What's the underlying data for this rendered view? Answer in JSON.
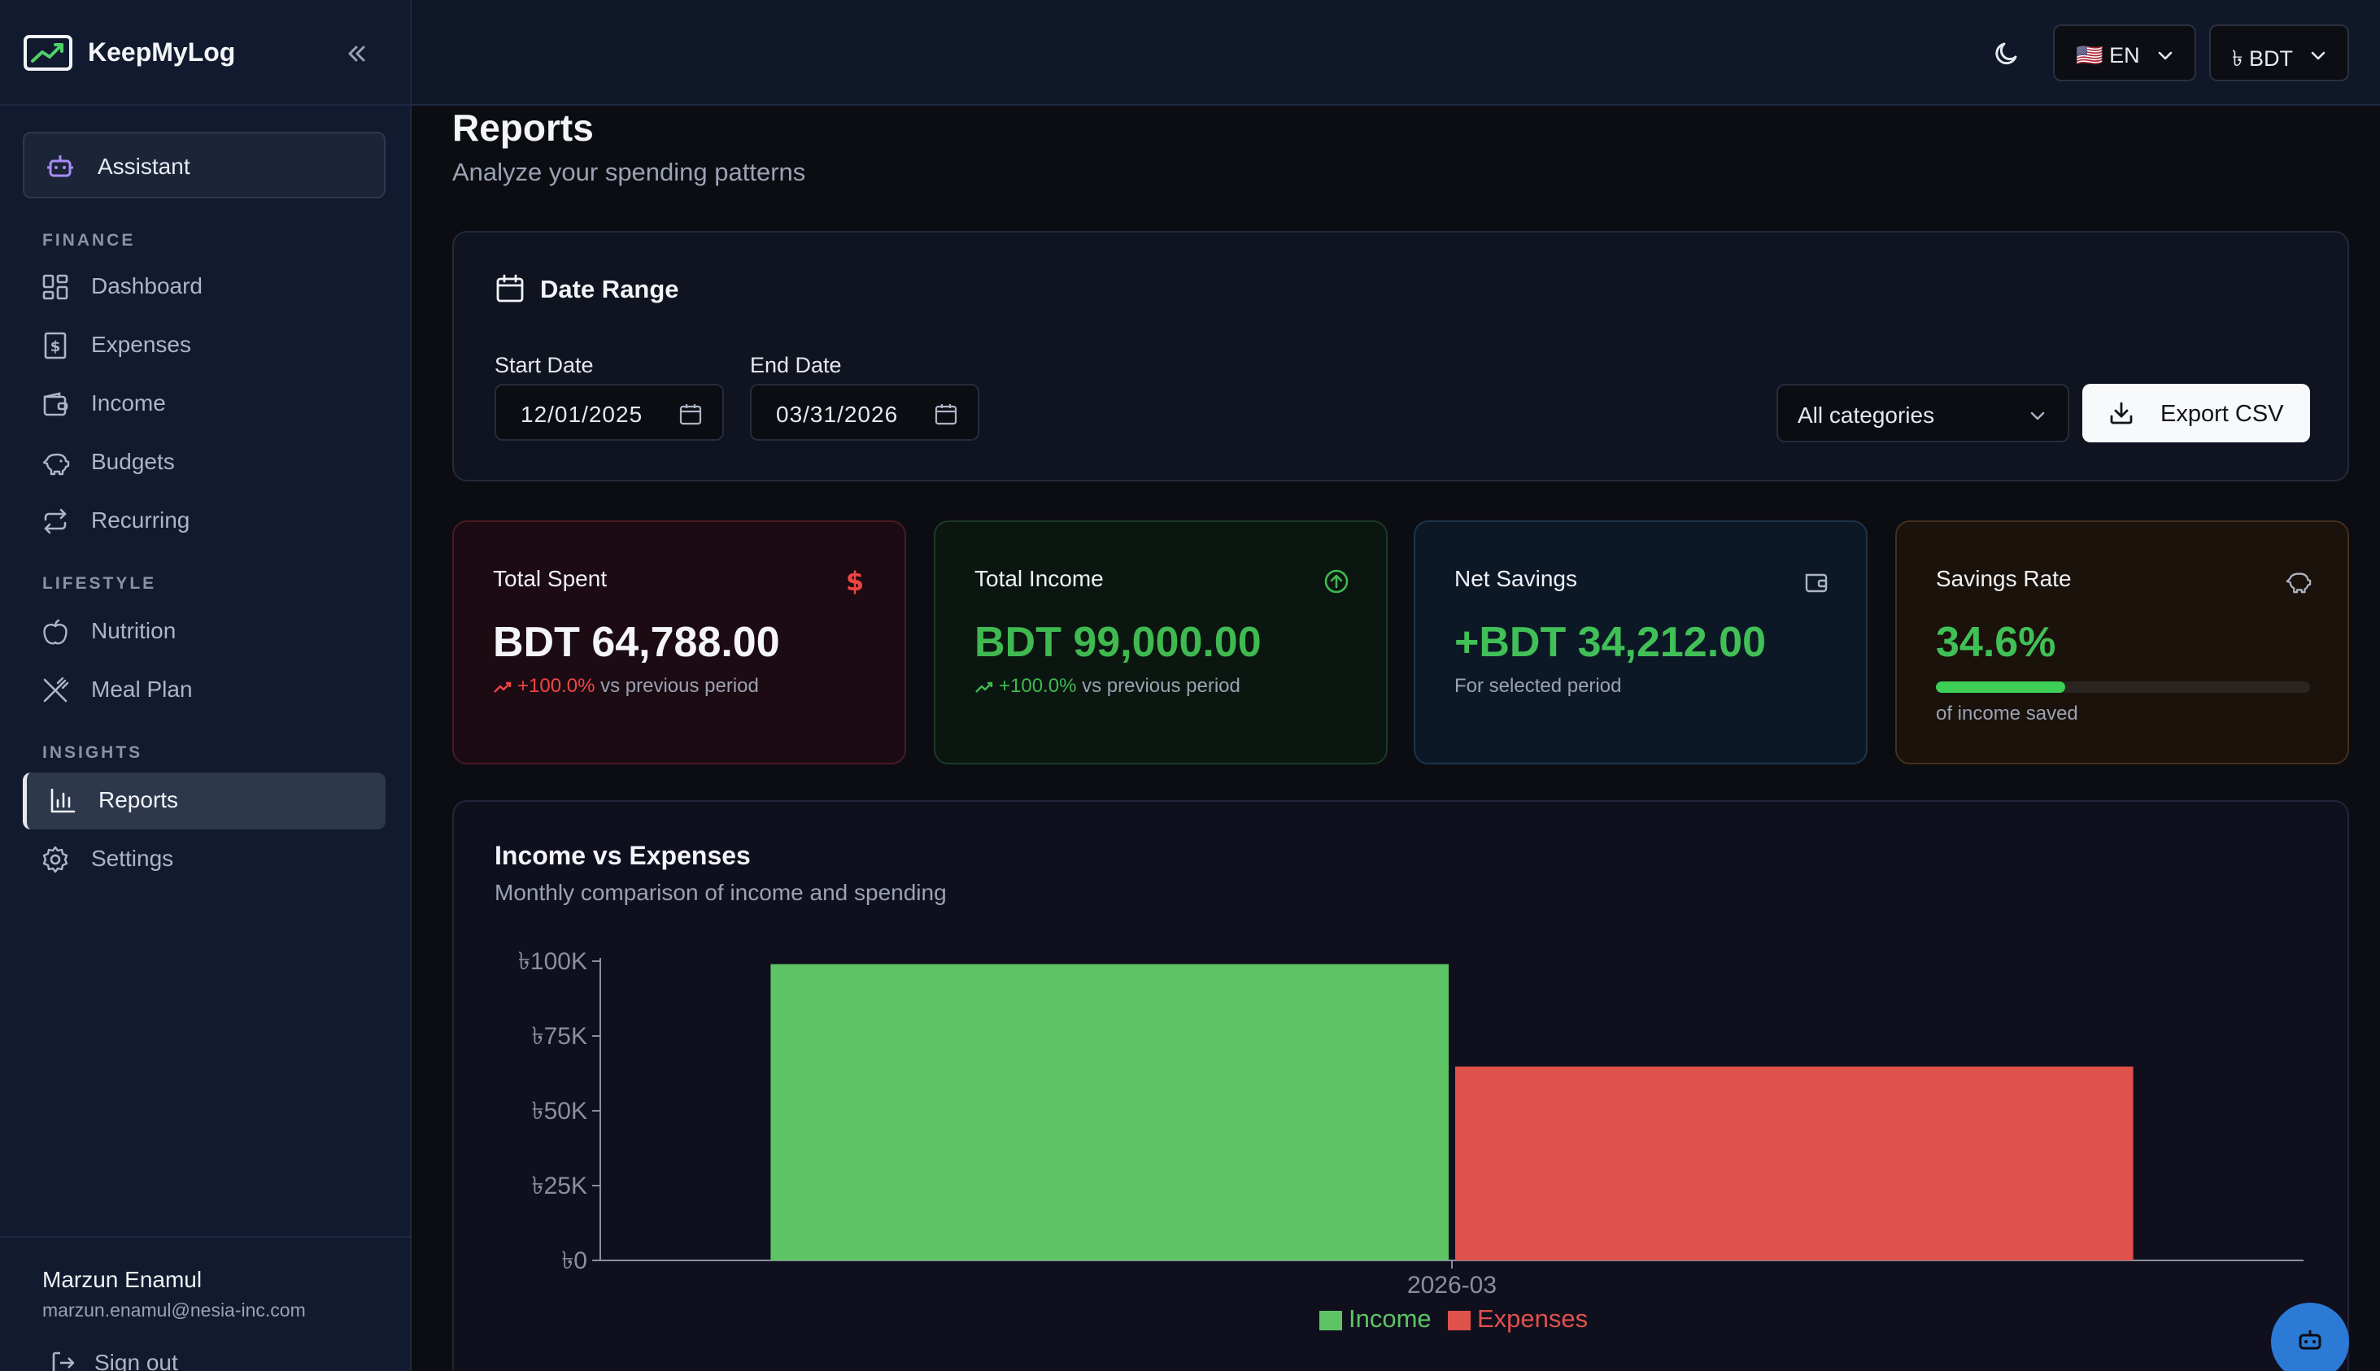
{
  "app": {
    "name": "KeepMyLog"
  },
  "sidebar": {
    "assistant_label": "Assistant",
    "sections": {
      "finance": "FINANCE",
      "lifestyle": "LIFESTYLE",
      "insights": "INSIGHTS"
    },
    "items": {
      "dashboard": "Dashboard",
      "expenses": "Expenses",
      "income": "Income",
      "budgets": "Budgets",
      "recurring": "Recurring",
      "nutrition": "Nutrition",
      "meal_plan": "Meal Plan",
      "reports": "Reports",
      "settings": "Settings"
    },
    "active_item": "reports",
    "user": {
      "name": "Marzun Enamul",
      "email": "marzun.enamul@nesia-inc.com",
      "signout_label": "Sign out"
    }
  },
  "topbar": {
    "language": "🇺🇸 EN",
    "currency": "৳ BDT"
  },
  "page": {
    "title": "Reports",
    "subtitle": "Analyze your spending patterns"
  },
  "date_range": {
    "title": "Date Range",
    "start_label": "Start Date",
    "start_value": "12/01/2025",
    "end_label": "End Date",
    "end_value": "03/31/2026",
    "category_value": "All categories",
    "export_label": "Export CSV"
  },
  "stats": {
    "total_spent": {
      "title": "Total Spent",
      "value": "BDT 64,788.00",
      "change": "+100.0%",
      "suffix": " vs previous period"
    },
    "total_income": {
      "title": "Total Income",
      "value": "BDT 99,000.00",
      "change": "+100.0%",
      "suffix": " vs previous period"
    },
    "net_savings": {
      "title": "Net Savings",
      "value": "+BDT 34,212.00",
      "note": "For selected period"
    },
    "savings_rate": {
      "title": "Savings Rate",
      "value": "34.6%",
      "fraction": 0.346,
      "note": "of income saved"
    }
  },
  "colors": {
    "income": "#5ec466",
    "expenses": "#df514b",
    "spent_accent": "#ef4444",
    "income_accent": "#3fb950",
    "savings_accent": "#40c057"
  },
  "chart": {
    "title": "Income vs Expenses",
    "subtitle": "Monthly comparison of income and spending"
  },
  "chart_data": {
    "type": "bar",
    "categories": [
      "2026-03"
    ],
    "series": [
      {
        "name": "Income",
        "values": [
          99000
        ]
      },
      {
        "name": "Expenses",
        "values": [
          64788
        ]
      }
    ],
    "yticks": [
      "৳0",
      "৳25K",
      "৳50K",
      "৳75K",
      "৳100K"
    ],
    "ylim": [
      0,
      100000
    ],
    "legend": "bottom",
    "grid": false
  }
}
